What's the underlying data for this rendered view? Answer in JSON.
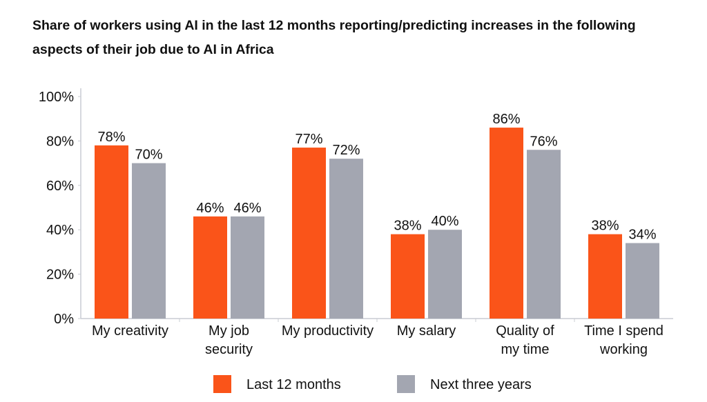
{
  "chart_data": {
    "type": "bar",
    "title": "Share of workers using AI in the last 12 months reporting/predicting increases in the following aspects of their job due to AI in Africa",
    "xlabel": "",
    "ylabel": "",
    "categories": [
      "My creativity",
      "My job security",
      "My productivity",
      "My salary",
      "Quality of my time",
      "Time I spend working"
    ],
    "series": [
      {
        "name": "Last 12 months",
        "values": [
          78,
          46,
          77,
          38,
          86,
          38
        ],
        "color": "#FA5419"
      },
      {
        "name": "Next three years",
        "values": [
          70,
          46,
          72,
          40,
          76,
          34
        ],
        "color": "#A3A6B1"
      }
    ],
    "ylim": [
      0,
      100
    ],
    "yticks": [
      "0%",
      "20%",
      "40%",
      "60%",
      "80%",
      "100%"
    ],
    "value_suffix": "%",
    "grid": false,
    "legend": "bottom"
  }
}
